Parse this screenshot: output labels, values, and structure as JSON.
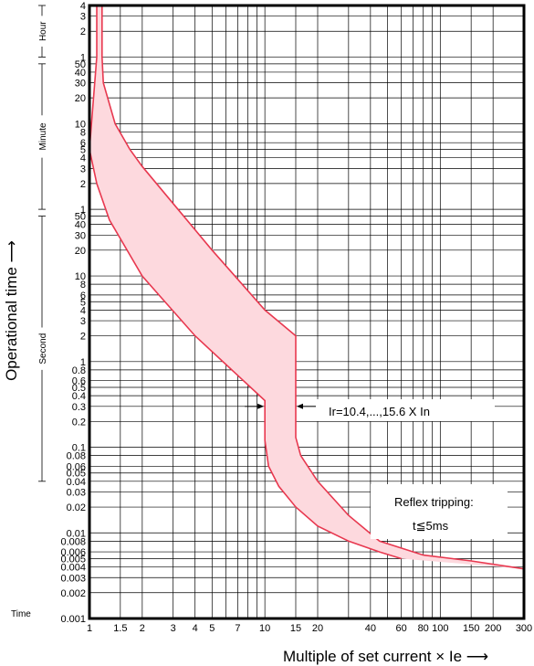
{
  "chart_data": {
    "type": "line",
    "xlabel": "Multiple of set current × Ie",
    "ylabel": "Operational time",
    "x_scale": "log",
    "y_scale": "log",
    "xlim": [
      1,
      300
    ],
    "ylim_seconds": [
      0.001,
      14400
    ],
    "grid": true,
    "x_ticks": [
      {
        "v": 1,
        "label": "1"
      },
      {
        "v": 1.5,
        "label": "1.5"
      },
      {
        "v": 2,
        "label": "2"
      },
      {
        "v": 3,
        "label": "3"
      },
      {
        "v": 4,
        "label": "4"
      },
      {
        "v": 5,
        "label": "5"
      },
      {
        "v": 7,
        "label": "7"
      },
      {
        "v": 10,
        "label": "10"
      },
      {
        "v": 15,
        "label": "15"
      },
      {
        "v": 20,
        "label": "20"
      },
      {
        "v": 40,
        "label": "40"
      },
      {
        "v": 60,
        "label": "60"
      },
      {
        "v": 80,
        "label": "80"
      },
      {
        "v": 100,
        "label": "100"
      },
      {
        "v": 150,
        "label": "150"
      },
      {
        "v": 200,
        "label": "200"
      },
      {
        "v": 300,
        "label": "300"
      }
    ],
    "y_ticks": [
      {
        "s": 14400,
        "label": "4"
      },
      {
        "s": 10800,
        "label": "3"
      },
      {
        "s": 7200,
        "label": "2"
      },
      {
        "s": 3600,
        "label": "1"
      },
      {
        "s": 3000,
        "label": "50"
      },
      {
        "s": 2400,
        "label": "40"
      },
      {
        "s": 1800,
        "label": "30"
      },
      {
        "s": 1200,
        "label": "20"
      },
      {
        "s": 600,
        "label": "10"
      },
      {
        "s": 480,
        "label": "8"
      },
      {
        "s": 360,
        "label": "6"
      },
      {
        "s": 300,
        "label": "5"
      },
      {
        "s": 240,
        "label": "4"
      },
      {
        "s": 180,
        "label": "3"
      },
      {
        "s": 120,
        "label": "2"
      },
      {
        "s": 60,
        "label": "1"
      },
      {
        "s": 50,
        "label": "50"
      },
      {
        "s": 40,
        "label": "40"
      },
      {
        "s": 30,
        "label": "30"
      },
      {
        "s": 20,
        "label": "20"
      },
      {
        "s": 10,
        "label": "10"
      },
      {
        "s": 8,
        "label": "8"
      },
      {
        "s": 6,
        "label": "6"
      },
      {
        "s": 5,
        "label": "5"
      },
      {
        "s": 4,
        "label": "4"
      },
      {
        "s": 3,
        "label": "3"
      },
      {
        "s": 2,
        "label": "2"
      },
      {
        "s": 1,
        "label": "1"
      },
      {
        "s": 0.8,
        "label": "0.8"
      },
      {
        "s": 0.6,
        "label": "0.6"
      },
      {
        "s": 0.5,
        "label": "0.5"
      },
      {
        "s": 0.4,
        "label": "0.4"
      },
      {
        "s": 0.3,
        "label": "0.3"
      },
      {
        "s": 0.2,
        "label": "0.2"
      },
      {
        "s": 0.1,
        "label": "0.1"
      },
      {
        "s": 0.08,
        "label": "0.08"
      },
      {
        "s": 0.06,
        "label": "0.06"
      },
      {
        "s": 0.05,
        "label": "0.05"
      },
      {
        "s": 0.04,
        "label": "0.04"
      },
      {
        "s": 0.03,
        "label": "0.03"
      },
      {
        "s": 0.02,
        "label": "0.02"
      },
      {
        "s": 0.01,
        "label": "0.01"
      },
      {
        "s": 0.008,
        "label": "0.008"
      },
      {
        "s": 0.006,
        "label": "0.006"
      },
      {
        "s": 0.005,
        "label": "0.005"
      },
      {
        "s": 0.004,
        "label": "0.004"
      },
      {
        "s": 0.003,
        "label": "0.003"
      },
      {
        "s": 0.002,
        "label": "0.002"
      },
      {
        "s": 0.001,
        "label": "0.001"
      }
    ],
    "y_units": [
      {
        "label": "Hour",
        "from_s": 3600,
        "to_s": 14400
      },
      {
        "label": "Minute",
        "from_s": 60,
        "to_s": 3000
      },
      {
        "label": "Second",
        "from_s": 0.04,
        "to_s": 50
      },
      {
        "label": "Time",
        "from_s": 0.001,
        "to_s": 0.001
      }
    ],
    "series": [
      {
        "role": "upper",
        "points": [
          [
            1.18,
            14400
          ],
          [
            1.18,
            3600
          ],
          [
            1.2,
            1800
          ],
          [
            1.4,
            600
          ],
          [
            1.7,
            300
          ],
          [
            2.0,
            190
          ],
          [
            3.0,
            70
          ],
          [
            5.0,
            20
          ],
          [
            10.0,
            4.0
          ],
          [
            15.0,
            2.0
          ],
          [
            15.0,
            0.35
          ],
          [
            15.0,
            0.13
          ],
          [
            16.0,
            0.08
          ],
          [
            20.0,
            0.04
          ],
          [
            30.0,
            0.016
          ],
          [
            45.0,
            0.008
          ],
          [
            80.0,
            0.0055
          ],
          [
            150.0,
            0.0047
          ],
          [
            300.0,
            0.0038
          ]
        ]
      },
      {
        "role": "lower",
        "points": [
          [
            1.1,
            14400
          ],
          [
            1.1,
            3600
          ],
          [
            1.0,
            300
          ],
          [
            1.1,
            120
          ],
          [
            1.3,
            45
          ],
          [
            2.0,
            10
          ],
          [
            4.0,
            2.0
          ],
          [
            10.0,
            0.35
          ],
          [
            10.0,
            0.12
          ],
          [
            10.5,
            0.06
          ],
          [
            12.0,
            0.035
          ],
          [
            15.0,
            0.02
          ],
          [
            20.0,
            0.012
          ],
          [
            30.0,
            0.008
          ],
          [
            45.0,
            0.006
          ],
          [
            60.0,
            0.005
          ]
        ]
      }
    ],
    "colors": {
      "curve": "#e8384f",
      "band": "#fdd9de"
    },
    "annotations": {
      "ir_label": "Ir=10.4,...,15.6 X In",
      "ir_range": [
        10,
        15
      ],
      "ir_time_s": 0.3,
      "reflex_title": "Reflex tripping:",
      "reflex_value": "t≦5ms"
    }
  }
}
